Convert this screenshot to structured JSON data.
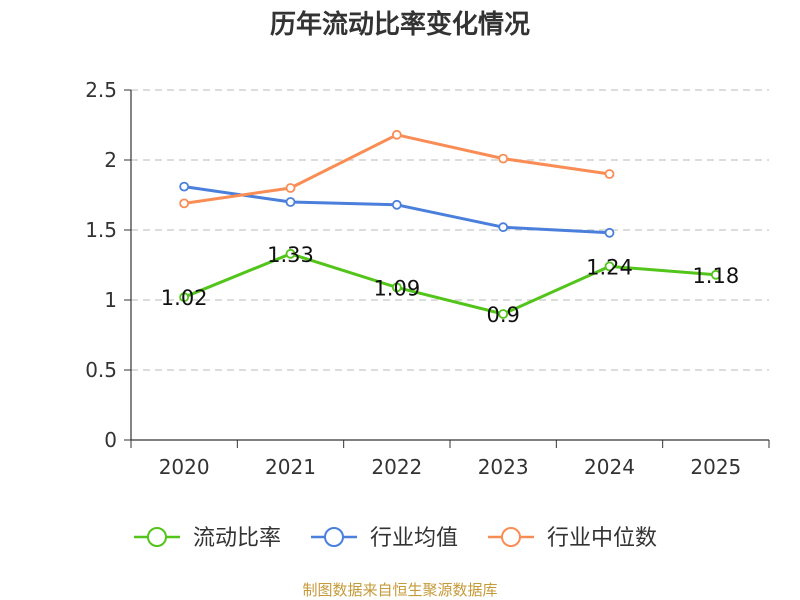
{
  "chart_data": {
    "type": "line",
    "title": "历年流动比率变化情况",
    "categories": [
      "2020",
      "2021",
      "2022",
      "2023",
      "2024",
      "2025"
    ],
    "ylim": [
      0,
      2.5
    ],
    "yticks": [
      "0",
      "0.5",
      "1",
      "1.5",
      "2",
      "2.5"
    ],
    "grid": true,
    "legend_position": "bottom",
    "series": [
      {
        "name": "流动比率",
        "color": "#52c41a",
        "values": [
          1.02,
          1.33,
          1.09,
          0.9,
          1.24,
          1.18
        ],
        "labels": [
          "1.02",
          "1.33",
          "1.09",
          "0.9",
          "1.24",
          "1.18"
        ]
      },
      {
        "name": "行业均值",
        "color": "#4a7fdc",
        "values": [
          1.81,
          1.7,
          1.68,
          1.52,
          1.48,
          null
        ]
      },
      {
        "name": "行业中位数",
        "color": "#f98d55",
        "values": [
          1.69,
          1.8,
          2.18,
          2.01,
          1.9,
          null
        ]
      }
    ],
    "source": "制图数据来自恒生聚源数据库"
  }
}
